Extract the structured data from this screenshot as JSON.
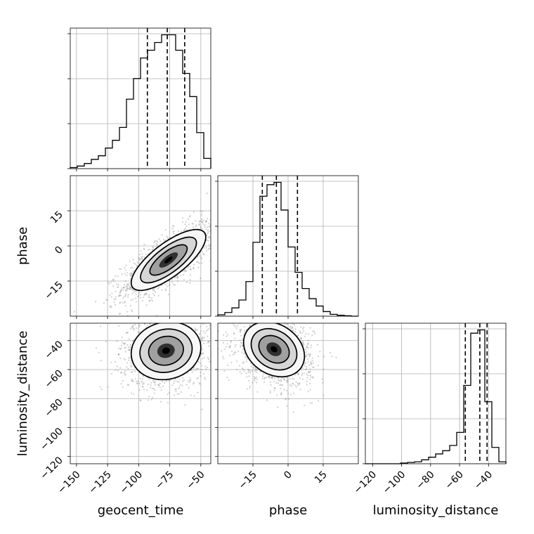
{
  "chart_data": {
    "type": "corner",
    "parameters": [
      "geocent_time",
      "phase",
      "luminosity_distance"
    ],
    "labels": {
      "x": [
        "geocent_time",
        "phase",
        "luminosity_distance"
      ],
      "y_phase": "phase",
      "y_luminosity_distance": "luminosity_distance"
    },
    "ranges": {
      "geocent_time": [
        -155,
        -42
      ],
      "phase": [
        -30,
        30
      ],
      "luminosity_distance": [
        -125,
        -28
      ]
    },
    "ticks": {
      "geocent_time": [
        -150,
        -125,
        -100,
        -75,
        -50
      ],
      "geocent_time_labels": [
        "−150",
        "−125",
        "−100",
        "−75",
        "−50"
      ],
      "phase": [
        -15,
        0,
        15
      ],
      "phase_labels": [
        "−15",
        "0",
        "15"
      ],
      "luminosity_distance": [
        -120,
        -100,
        -80,
        -60,
        -40
      ],
      "luminosity_distance_labels": [
        "−120",
        "−100",
        "−80",
        "−60",
        "−40"
      ]
    },
    "marginals": {
      "geocent_time": {
        "bins": 20,
        "counts": [
          2,
          5,
          10,
          18,
          25,
          40,
          55,
          80,
          135,
          175,
          215,
          230,
          245,
          260,
          260,
          230,
          185,
          140,
          70,
          20
        ],
        "quantiles": [
          -93,
          -77,
          -63
        ]
      },
      "phase": {
        "bins": 20,
        "counts": [
          3,
          8,
          18,
          35,
          75,
          160,
          260,
          285,
          290,
          230,
          150,
          95,
          60,
          38,
          22,
          10,
          4,
          2,
          1,
          0
        ],
        "quantiles": [
          -11,
          -5,
          4
        ]
      },
      "luminosity_distance": {
        "bins": 20,
        "counts": [
          0,
          0,
          0,
          0,
          0,
          1,
          2,
          3,
          6,
          10,
          15,
          20,
          28,
          48,
          120,
          200,
          205,
          95,
          25,
          3
        ],
        "quantiles": [
          -56,
          -46,
          -41
        ]
      }
    },
    "joint": {
      "phase_vs_geocent_time": {
        "mean": [
          -76,
          -6
        ],
        "sd": [
          15,
          6.5
        ],
        "rho": 0.75
      },
      "luminosity_distance_vs_geocent_time": {
        "mean": [
          -78,
          -47
        ],
        "sd": [
          14,
          10
        ],
        "rho": 0.1
      },
      "luminosity_distance_vs_phase": {
        "mean": [
          -6,
          -46
        ],
        "sd": [
          6.5,
          9.5
        ],
        "rho": -0.25
      }
    },
    "grid": true
  }
}
